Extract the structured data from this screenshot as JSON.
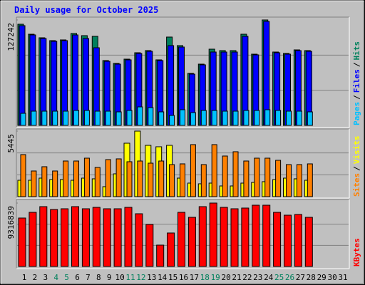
{
  "title": "Daily usage for October 2025",
  "separator": "/",
  "categories": [
    "1",
    "2",
    "3",
    "4",
    "5",
    "6",
    "7",
    "8",
    "9",
    "10",
    "11",
    "12",
    "13",
    "14",
    "15",
    "16",
    "17",
    "18",
    "19",
    "20",
    "21",
    "22",
    "23",
    "24",
    "25",
    "26",
    "27",
    "28",
    "29",
    "30",
    "31"
  ],
  "category_colors": [
    "#000000",
    "#000000",
    "#000000",
    "#00805C",
    "#00805C",
    "#000000",
    "#000000",
    "#000000",
    "#000000",
    "#000000",
    "#00805C",
    "#00805C",
    "#000000",
    "#000000",
    "#000000",
    "#000000",
    "#000000",
    "#00805C",
    "#00805C",
    "#000000",
    "#000000",
    "#000000",
    "#000000",
    "#000000",
    "#00805C",
    "#00805C",
    "#000000",
    "#000000",
    "#000000",
    "#000000",
    "#000000"
  ],
  "chart_data": [
    {
      "type": "bar",
      "ylim": [
        0,
        127242
      ],
      "yticks": [
        127242
      ],
      "series": [
        {
          "name": "Hits",
          "color": "#00805C",
          "values": [
            122080,
            110040,
            105750,
            102310,
            103170,
            110910,
            108330,
            107470,
            78240,
            74800,
            79960,
            87690,
            90270,
            79100,
            106610,
            96290,
            62760,
            73940,
            91990,
            90270,
            90270,
            110040,
            85970,
            127242,
            88550,
            86830,
            91130,
            90270,
            0,
            null,
            null
          ]
        },
        {
          "name": "Files",
          "color": "#0000FF",
          "values": [
            120360,
            109180,
            104880,
            101440,
            102300,
            109180,
            104880,
            93710,
            77370,
            73930,
            79090,
            86830,
            89410,
            78230,
            96290,
            94570,
            61900,
            73070,
            88550,
            88550,
            88550,
            107460,
            85110,
            125520,
            87690,
            85970,
            90270,
            89410,
            0,
            null,
            null
          ]
        },
        {
          "name": "Pages",
          "color": "#00C0FF",
          "values": [
            14600,
            17200,
            17200,
            17200,
            17200,
            18050,
            18050,
            17200,
            17200,
            16330,
            18050,
            22350,
            21490,
            16330,
            12040,
            18910,
            15470,
            18050,
            18050,
            17200,
            17200,
            18050,
            18050,
            18910,
            18050,
            17200,
            17200,
            16330,
            0,
            null,
            null
          ]
        }
      ]
    },
    {
      "type": "bar",
      "ylim": [
        0,
        5445
      ],
      "yticks": [
        5445
      ],
      "series": [
        {
          "name": "Visits",
          "color": "#FFFF00",
          "values": [
            1362,
            1362,
            1539,
            1421,
            1421,
            1362,
            1539,
            1480,
            829,
            1894,
            4440,
            5445,
            4262,
            4144,
            4262,
            1539,
            1125,
            1066,
            1125,
            888,
            888,
            1125,
            1184,
            1243,
            1421,
            1539,
            1480,
            1362,
            0,
            null,
            null
          ]
        },
        {
          "name": "Sites",
          "color": "#FF8000",
          "values": [
            3493,
            2131,
            2486,
            2131,
            2960,
            2960,
            3197,
            2427,
            3078,
            3138,
            2901,
            2960,
            2782,
            2960,
            2664,
            2723,
            4322,
            2664,
            4322,
            3374,
            3730,
            2960,
            3197,
            3197,
            3019,
            2664,
            2664,
            2723,
            0,
            null,
            null
          ]
        }
      ]
    },
    {
      "type": "bar",
      "ylim": [
        0,
        9316839
      ],
      "yticks": [
        9316839
      ],
      "series": [
        {
          "name": "KBytes",
          "color": "#FF0000",
          "values": [
            7118500,
            7956000,
            8793500,
            8374700,
            8479400,
            8793500,
            8479400,
            8688800,
            8479400,
            8479400,
            8688800,
            7746600,
            6176400,
            3140500,
            4920100,
            7956000,
            7223200,
            8793500,
            9316839,
            8688800,
            8479400,
            8584100,
            9002800,
            9002800,
            7956000,
            7537200,
            7641900,
            7223200,
            0,
            null,
            null
          ]
        }
      ]
    }
  ]
}
